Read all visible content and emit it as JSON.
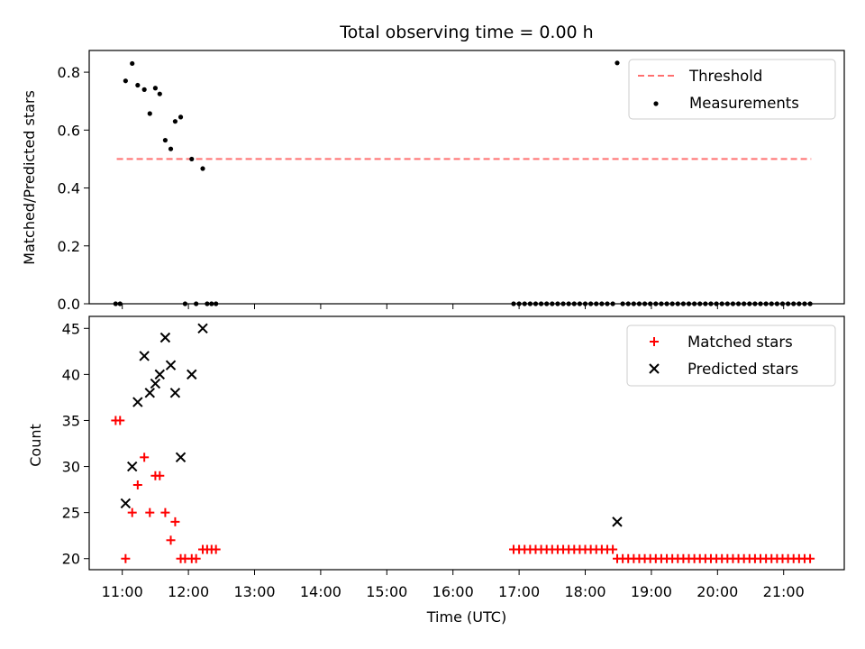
{
  "chart_data": [
    {
      "type": "scatter",
      "title": "Total observing time = 0.00 h",
      "ylabel": "Matched/Predicted stars",
      "xlabel": "",
      "xlim": [
        "10:30",
        "21:55"
      ],
      "ylim": [
        0,
        0.875
      ],
      "yticks": [
        "0.0",
        "0.2",
        "0.4",
        "0.6",
        "0.8"
      ],
      "legend_position": "top-right",
      "threshold": {
        "name": "Threshold",
        "value": 0.5,
        "x_range": [
          "10:55",
          "21:25"
        ],
        "color": "#ff7070"
      },
      "series": [
        {
          "name": "Measurements",
          "color": "#000000",
          "points": [
            [
              "10:54",
              0.0
            ],
            [
              "10:58",
              0.0
            ],
            [
              "11:03",
              0.77
            ],
            [
              "11:09",
              0.83
            ],
            [
              "11:14",
              0.755
            ],
            [
              "11:20",
              0.74
            ],
            [
              "11:25",
              0.657
            ],
            [
              "11:30",
              0.745
            ],
            [
              "11:34",
              0.725
            ],
            [
              "11:39",
              0.565
            ],
            [
              "11:44",
              0.535
            ],
            [
              "11:48",
              0.63
            ],
            [
              "11:53",
              0.645
            ],
            [
              "11:57",
              0.0
            ],
            [
              "12:03",
              0.5
            ],
            [
              "12:07",
              0.0
            ],
            [
              "12:13",
              0.467
            ],
            [
              "12:17",
              0.0
            ],
            [
              "12:21",
              0.0
            ],
            [
              "12:25",
              0.0
            ],
            [
              "18:29",
              0.832
            ]
          ],
          "zero_runs": [
            {
              "start": "16:55",
              "end": "18:25",
              "step_minutes": 5
            },
            {
              "start": "18:34",
              "end": "21:24",
              "step_minutes": 5
            }
          ]
        }
      ]
    },
    {
      "type": "scatter",
      "title": "",
      "ylabel": "Count",
      "xlabel": "Time (UTC)",
      "xlim": [
        "10:30",
        "21:55"
      ],
      "ylim": [
        18.8,
        46.3
      ],
      "yticks": [
        "20",
        "25",
        "30",
        "35",
        "40",
        "45"
      ],
      "xticks": [
        "11:00",
        "12:00",
        "13:00",
        "14:00",
        "15:00",
        "16:00",
        "17:00",
        "18:00",
        "19:00",
        "20:00",
        "21:00"
      ],
      "legend_position": "top-right",
      "series": [
        {
          "name": "Matched stars",
          "color": "#ff0000",
          "marker": "plus",
          "points": [
            [
              "10:54",
              35
            ],
            [
              "10:58",
              35
            ],
            [
              "11:03",
              20
            ],
            [
              "11:09",
              25
            ],
            [
              "11:14",
              28
            ],
            [
              "11:20",
              31
            ],
            [
              "11:25",
              25
            ],
            [
              "11:30",
              29
            ],
            [
              "11:34",
              29
            ],
            [
              "11:39",
              25
            ],
            [
              "11:44",
              22
            ],
            [
              "11:48",
              24
            ],
            [
              "11:53",
              20
            ],
            [
              "11:57",
              20
            ],
            [
              "12:03",
              20
            ],
            [
              "12:07",
              20
            ],
            [
              "12:13",
              21
            ],
            [
              "12:17",
              21
            ],
            [
              "12:21",
              21
            ],
            [
              "12:25",
              21
            ]
          ],
          "runs": [
            {
              "start": "16:55",
              "end": "18:25",
              "step_minutes": 5,
              "value": 21
            },
            {
              "start": "18:29",
              "end": "21:24",
              "step_minutes": 5,
              "value": 20
            }
          ]
        },
        {
          "name": "Predicted stars",
          "color": "#000000",
          "marker": "x",
          "points": [
            [
              "11:03",
              26
            ],
            [
              "11:09",
              30
            ],
            [
              "11:14",
              37
            ],
            [
              "11:20",
              42
            ],
            [
              "11:25",
              38
            ],
            [
              "11:30",
              39
            ],
            [
              "11:34",
              40
            ],
            [
              "11:39",
              44
            ],
            [
              "11:44",
              41
            ],
            [
              "11:48",
              38
            ],
            [
              "11:53",
              31
            ],
            [
              "12:03",
              40
            ],
            [
              "12:13",
              45
            ],
            [
              "18:29",
              24
            ]
          ]
        }
      ]
    }
  ]
}
